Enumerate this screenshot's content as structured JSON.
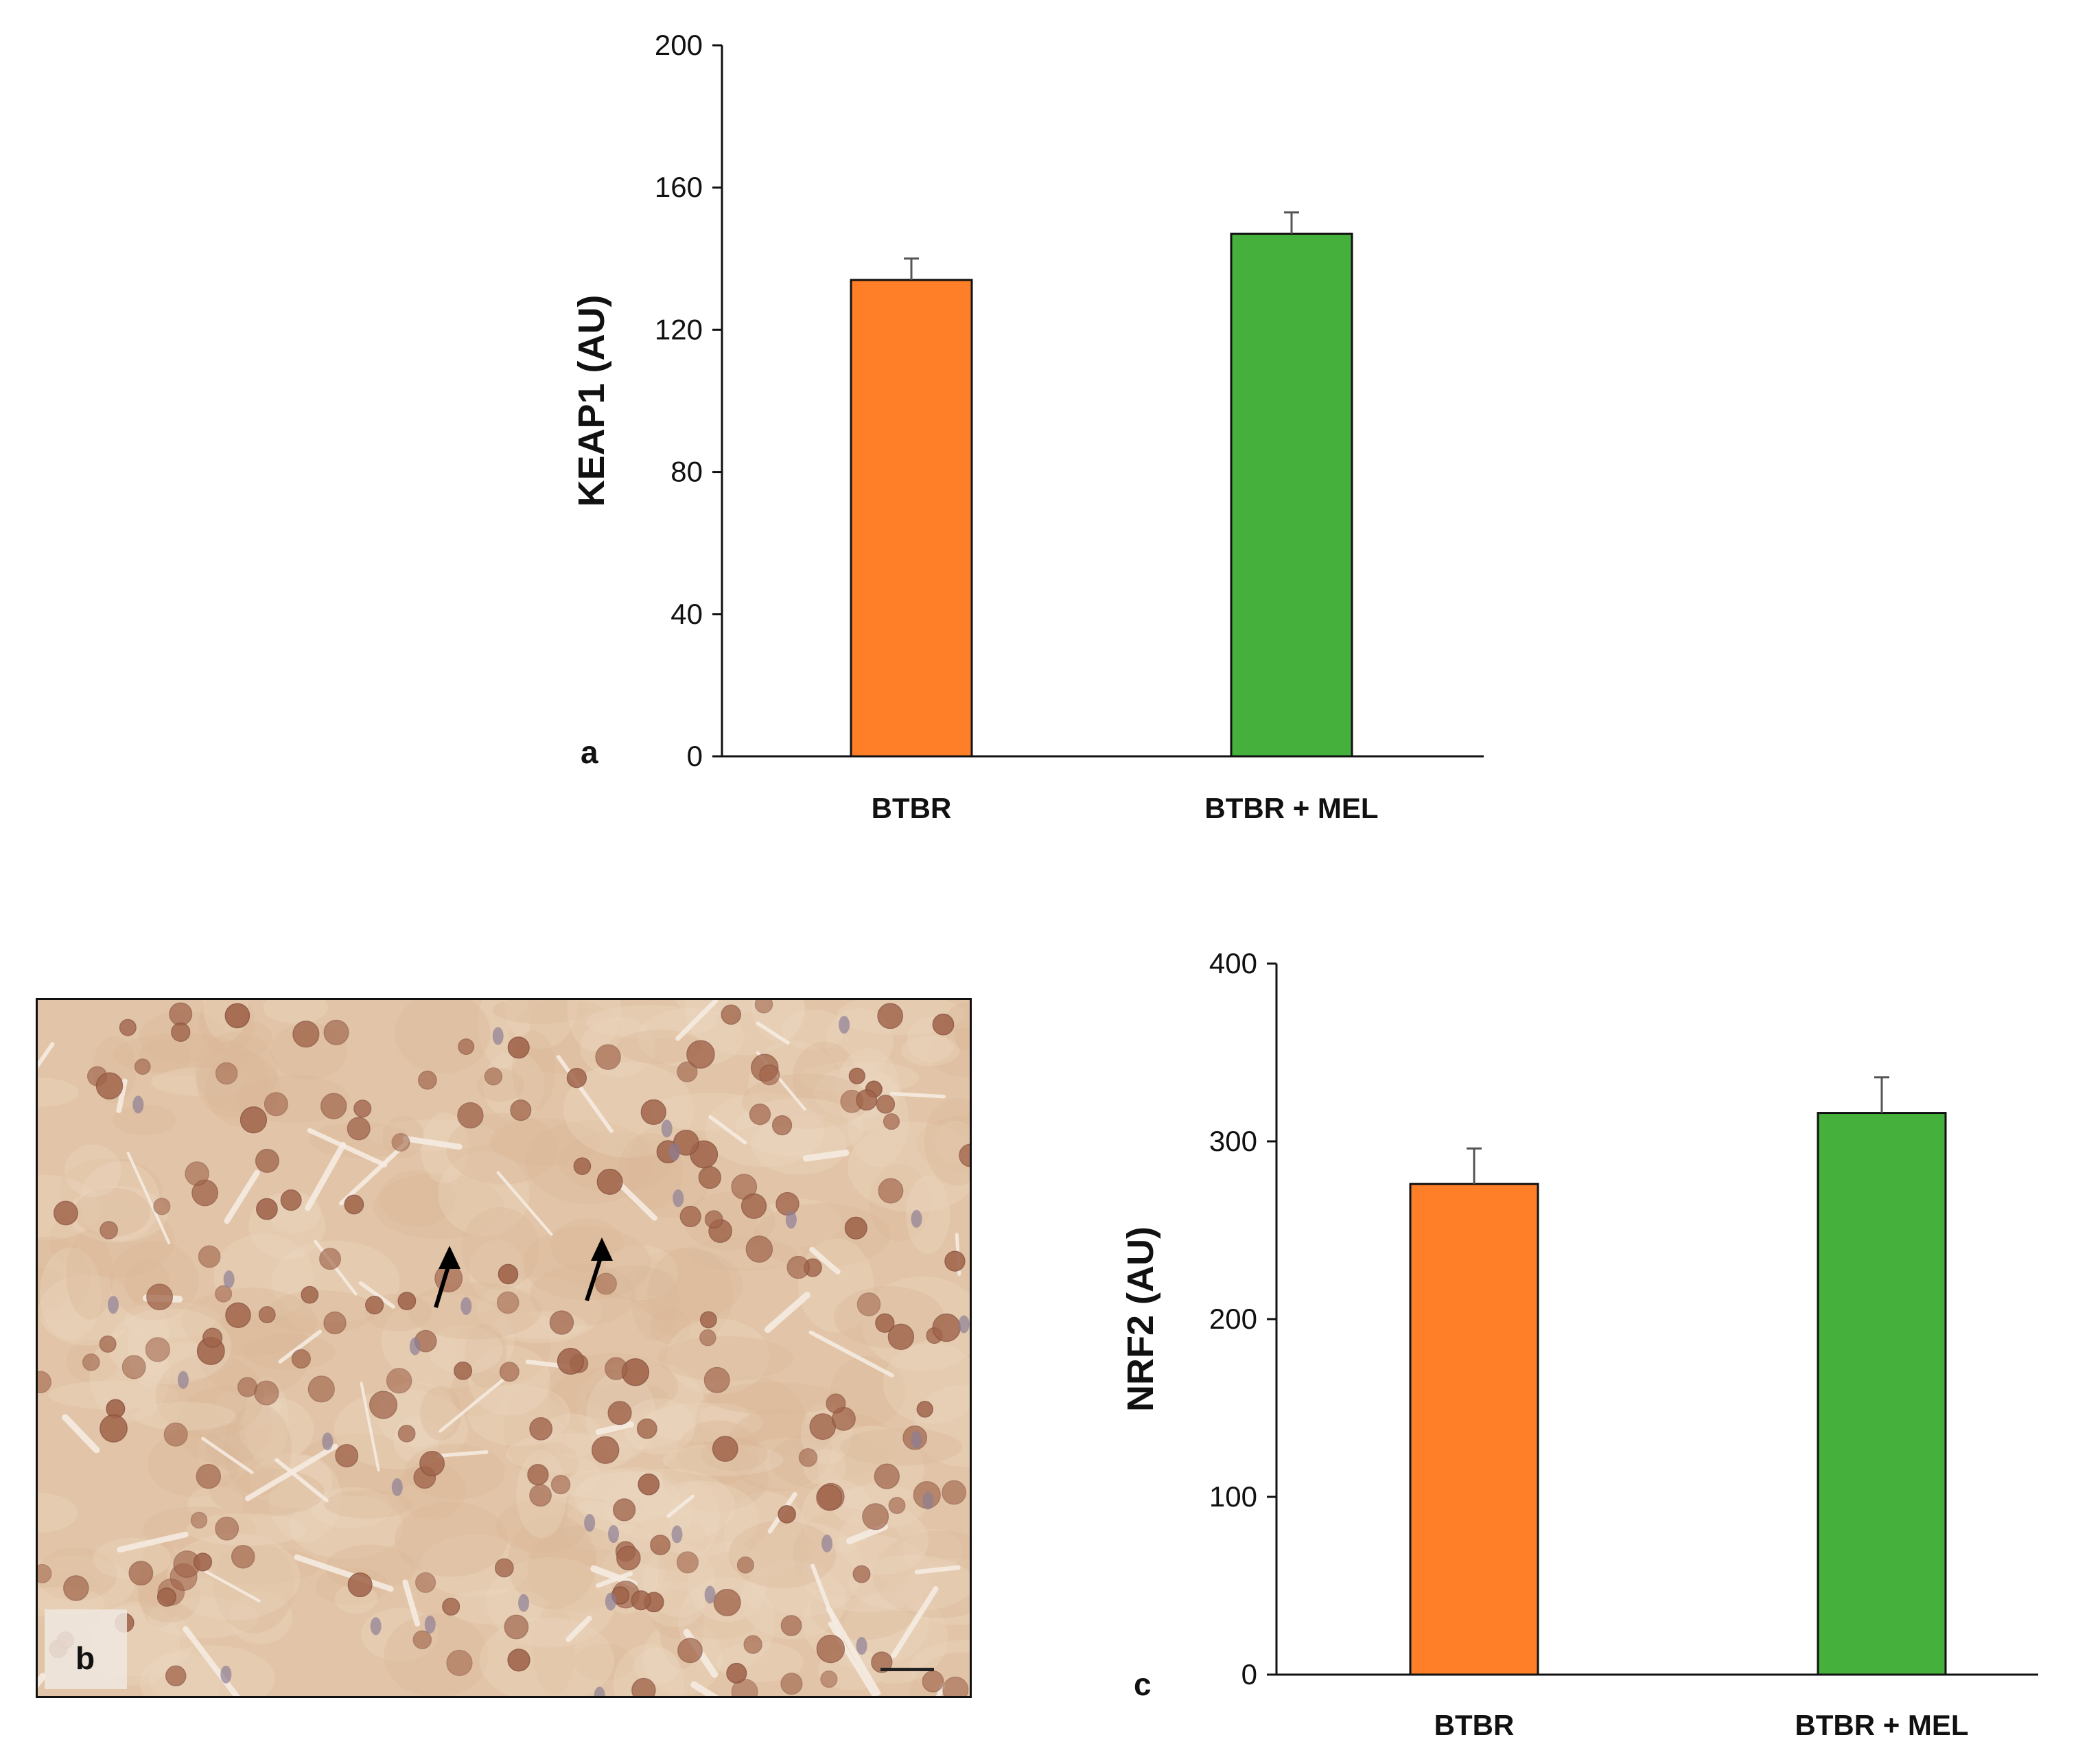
{
  "chart_data": [
    {
      "type": "bar",
      "panel": "a",
      "title": "",
      "xlabel": "",
      "ylabel": "KEAP1 (AU)",
      "ylim": [
        0,
        200
      ],
      "yticks": [
        0,
        40,
        80,
        120,
        160,
        200
      ],
      "categories": [
        "BTBR",
        "BTBR + MEL"
      ],
      "values": [
        134,
        147
      ],
      "errors": [
        6,
        6
      ],
      "colors": [
        "#fe7f27",
        "#45b03c"
      ],
      "grid": false,
      "legend": "none"
    },
    {
      "type": "bar",
      "panel": "c",
      "title": "",
      "xlabel": "",
      "ylabel": "NRF2 (AU)",
      "ylim": [
        0,
        400
      ],
      "yticks": [
        0,
        100,
        200,
        300,
        400
      ],
      "categories": [
        "BTBR",
        "BTBR + MEL"
      ],
      "values": [
        276,
        316
      ],
      "errors": [
        20,
        20
      ],
      "colors": [
        "#fe7f27",
        "#45b03c"
      ],
      "grid": false,
      "legend": "none"
    }
  ],
  "micrograph": {
    "label": "b",
    "content": "immunohistochemistry micrograph of liver tissue",
    "arrows": 2,
    "tissue_color": "#e2c5a8",
    "nucleus_color": "#a0644a"
  }
}
